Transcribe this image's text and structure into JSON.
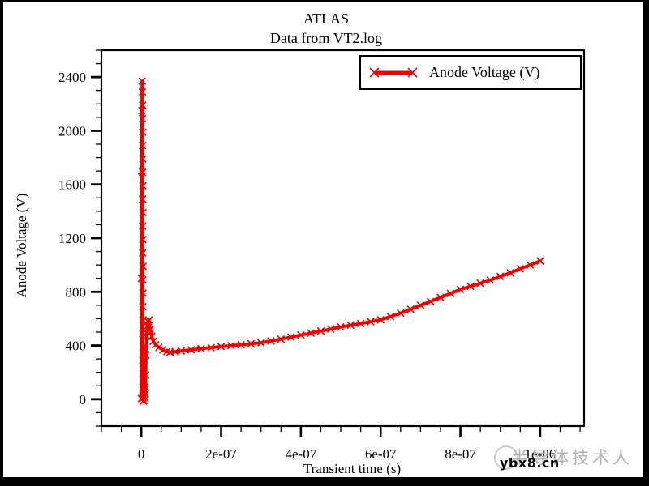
{
  "watermark": {
    "site": "ybx8.cn",
    "text_cn": "半导体技术人"
  },
  "chart_data": {
    "type": "line",
    "title": "ATLAS",
    "subtitle": "Data from VT2.log",
    "xlabel": "Transient time (s)",
    "ylabel": "Anode Voltage (V)",
    "xlim": [
      -1e-07,
      1.11e-06
    ],
    "ylim": [
      -200,
      2600
    ],
    "grid": false,
    "legend_position": "top-right",
    "xticks": {
      "major_values": [
        0,
        2e-07,
        4e-07,
        6e-07,
        8e-07,
        1e-06
      ],
      "major_labels": [
        "0",
        "2e-07",
        "4e-07",
        "6e-07",
        "8e-07",
        "1e-06"
      ],
      "minor_step": 5e-08
    },
    "yticks": {
      "major_values": [
        0,
        400,
        800,
        1200,
        1600,
        2000,
        2400
      ],
      "major_labels": [
        "0",
        "400",
        "800",
        "1200",
        "1600",
        "2000",
        "2400"
      ],
      "minor_step": 100
    },
    "series": [
      {
        "name": "Anode Voltage (V)",
        "color": "#ee0000",
        "marker": "x",
        "points": [
          [
            0,
            5
          ],
          [
            5e-10,
            900
          ],
          [
            1e-09,
            1700
          ],
          [
            1.5e-09,
            2150
          ],
          [
            2e-09,
            2370
          ],
          [
            2.6e-09,
            2290
          ],
          [
            3.4e-09,
            2190
          ],
          [
            2.9e-09,
            2090
          ],
          [
            3.7e-09,
            1990
          ],
          [
            3.1e-09,
            1890
          ],
          [
            3.9e-09,
            1790
          ],
          [
            3.2e-09,
            1690
          ],
          [
            4e-09,
            1590
          ],
          [
            3.3e-09,
            1490
          ],
          [
            4.1e-09,
            1390
          ],
          [
            3.4e-09,
            1290
          ],
          [
            4.2e-09,
            1190
          ],
          [
            3.5e-09,
            1090
          ],
          [
            4.3e-09,
            990
          ],
          [
            3.6e-09,
            890
          ],
          [
            4.4e-09,
            790
          ],
          [
            3.7e-09,
            690
          ],
          [
            4.5e-09,
            590
          ],
          [
            3.8e-09,
            490
          ],
          [
            4.6e-09,
            390
          ],
          [
            3.9e-09,
            290
          ],
          [
            4.7e-09,
            190
          ],
          [
            4.2e-09,
            90
          ],
          [
            4.8e-09,
            10
          ],
          [
            5.5e-09,
            -15
          ],
          [
            6.2e-09,
            60
          ],
          [
            6.8e-09,
            -10
          ],
          [
            7.5e-09,
            70
          ],
          [
            8.2e-09,
            15
          ],
          [
            9e-09,
            90
          ],
          [
            1e-08,
            40
          ],
          [
            1.1e-08,
            180
          ],
          [
            1.2e-08,
            330
          ],
          [
            1.35e-08,
            470
          ],
          [
            1.5e-08,
            545
          ],
          [
            1.7e-08,
            580
          ],
          [
            1.9e-08,
            591
          ],
          [
            2.2e-08,
            520
          ],
          [
            2.6e-08,
            468
          ],
          [
            3e-08,
            432
          ],
          [
            3.6e-08,
            406
          ],
          [
            4.4e-08,
            386
          ],
          [
            5.4e-08,
            367
          ],
          [
            6.4e-08,
            355
          ],
          [
            7.2e-08,
            350
          ],
          [
            8.5e-08,
            354
          ],
          [
            1e-07,
            360
          ],
          [
            1.25e-07,
            368
          ],
          [
            1.5e-07,
            376
          ],
          [
            1.75e-07,
            384
          ],
          [
            2e-07,
            392
          ],
          [
            2.25e-07,
            399
          ],
          [
            2.5e-07,
            406
          ],
          [
            2.75e-07,
            413
          ],
          [
            3e-07,
            421
          ],
          [
            3.25e-07,
            434
          ],
          [
            3.5e-07,
            448
          ],
          [
            3.75e-07,
            463
          ],
          [
            4e-07,
            478
          ],
          [
            4.25e-07,
            493
          ],
          [
            4.5e-07,
            508
          ],
          [
            4.75e-07,
            523
          ],
          [
            5e-07,
            538
          ],
          [
            5.25e-07,
            551
          ],
          [
            5.5e-07,
            564
          ],
          [
            5.75e-07,
            578
          ],
          [
            6e-07,
            592
          ],
          [
            6.25e-07,
            616
          ],
          [
            6.5e-07,
            642
          ],
          [
            6.75e-07,
            670
          ],
          [
            7e-07,
            700
          ],
          [
            7.25e-07,
            729
          ],
          [
            7.5e-07,
            758
          ],
          [
            7.75e-07,
            788
          ],
          [
            8e-07,
            818
          ],
          [
            8.25e-07,
            841
          ],
          [
            8.5e-07,
            864
          ],
          [
            8.75e-07,
            887
          ],
          [
            9e-07,
            915
          ],
          [
            9.25e-07,
            942
          ],
          [
            9.5e-07,
            972
          ],
          [
            9.75e-07,
            1000
          ],
          [
            1e-06,
            1030
          ]
        ]
      }
    ]
  }
}
